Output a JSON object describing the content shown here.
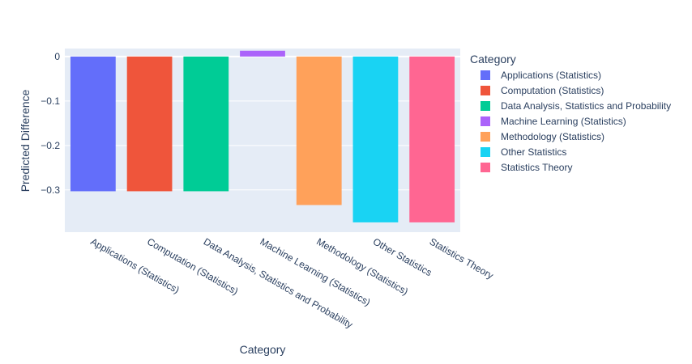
{
  "chart_data": {
    "type": "bar",
    "title": "",
    "xlabel": "Category",
    "ylabel": "Predicted Difference",
    "categories": [
      "Applications (Statistics)",
      "Computation (Statistics)",
      "Data Analysis, Statistics and Probability",
      "Machine Learning (Statistics)",
      "Methodology (Statistics)",
      "Other Statistics",
      "Statistics Theory"
    ],
    "values": [
      -0.303,
      -0.303,
      -0.303,
      0.013,
      -0.334,
      -0.373,
      -0.373
    ],
    "colors": [
      "#636efa",
      "#EF553B",
      "#00cc96",
      "#ab63fa",
      "#FFA15A",
      "#19d3f3",
      "#FF6692"
    ],
    "ylim": [
      -0.395,
      0.018
    ],
    "yticks": [
      0,
      -0.1,
      -0.2,
      -0.3
    ],
    "ytick_labels": [
      "0",
      "−0.1",
      "−0.2",
      "−0.3"
    ],
    "grid": true,
    "legend": {
      "title": "Category",
      "placement": "right",
      "entries": [
        "Applications (Statistics)",
        "Computation (Statistics)",
        "Data Analysis, Statistics and Probability",
        "Machine Learning (Statistics)",
        "Methodology (Statistics)",
        "Other Statistics",
        "Statistics Theory"
      ]
    },
    "plot_background": "#e5ecf6"
  }
}
